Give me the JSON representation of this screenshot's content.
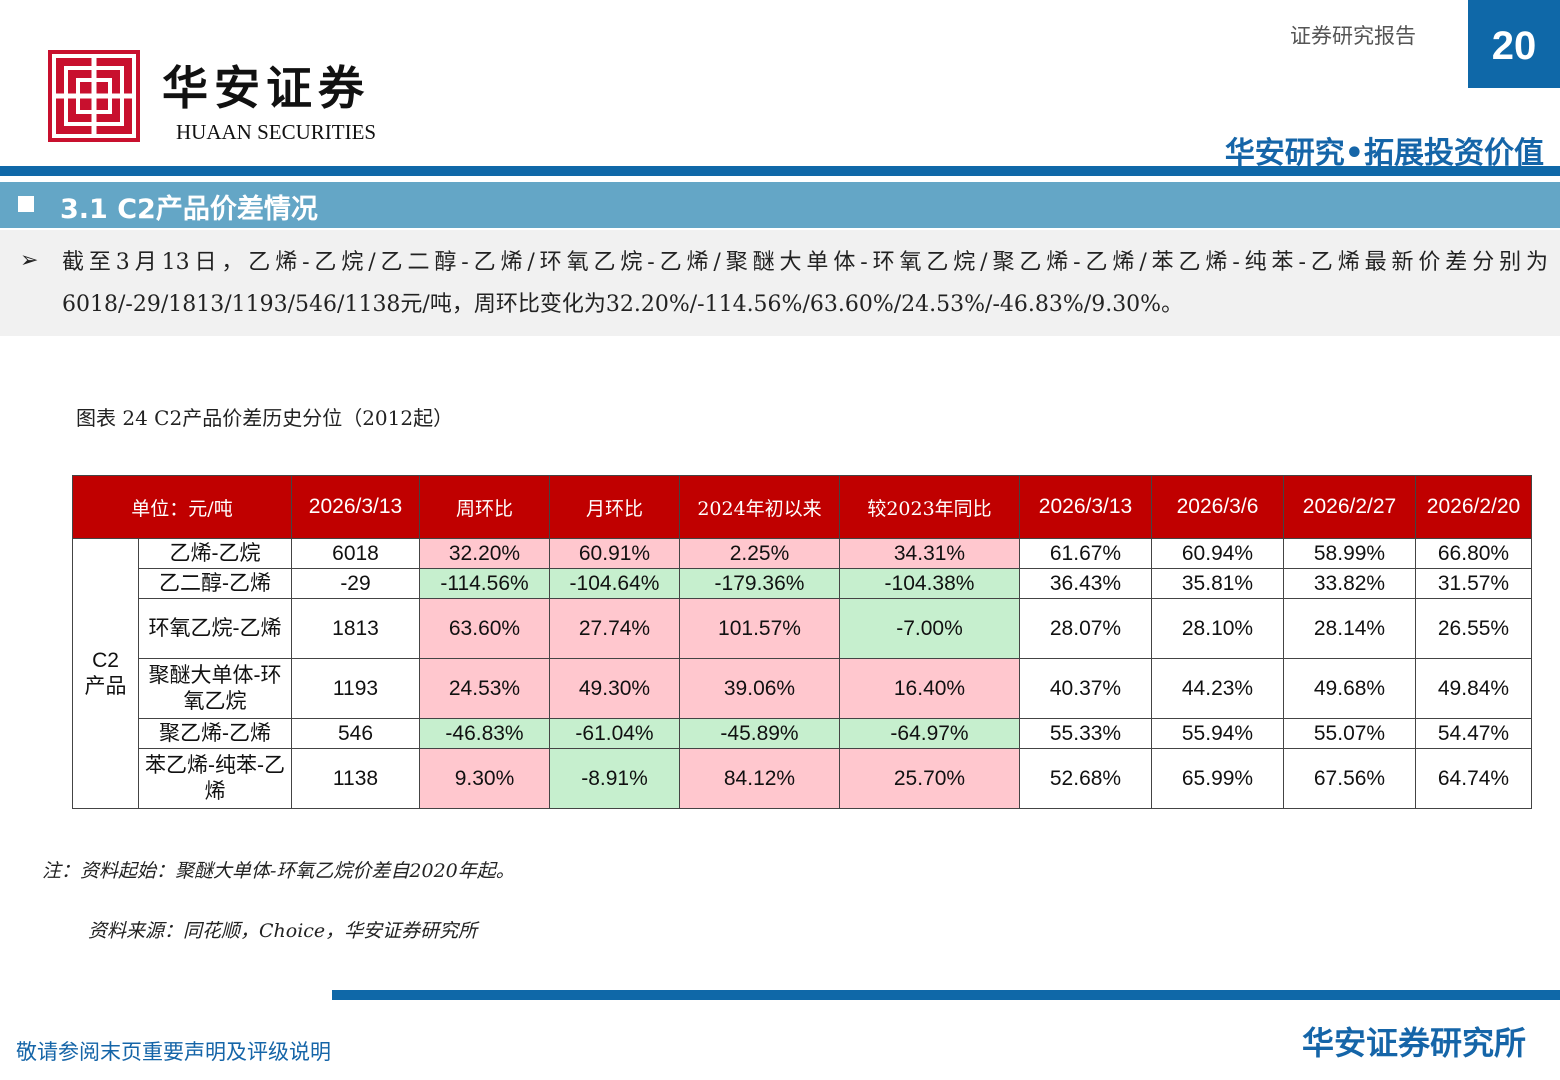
{
  "header": {
    "brand_cn": "华安证券",
    "brand_en": "HUAAN SECURITIES",
    "report_type": "证券研究报告",
    "page_number": "20",
    "slogan": "华安研究•拓展投资价值"
  },
  "section": {
    "title": "3.1 C2产品价差情况"
  },
  "summary": {
    "text": "截至3月13日，乙烯-乙烷/乙二醇-乙烯/环氧乙烷-乙烯/聚醚大单体-环氧乙烷/聚乙烯-乙烯/苯乙烯-纯苯-乙烯最新价差分别为6018/-29/1813/1193/546/1138元/吨，周环比变化为32.20%/-114.56%/63.60%/24.53%/-46.83%/9.30%。"
  },
  "figure": {
    "caption": "图表 24 C2产品价差历史分位（2012起）"
  },
  "table": {
    "headers": [
      "单位：元/吨",
      "2026/3/13",
      "周环比",
      "月环比",
      "2024年初以来",
      "较2023年同比",
      "2026/3/13",
      "2026/3/6",
      "2026/2/27",
      "2026/2/20"
    ],
    "group_label": "C2\n产品",
    "rows": [
      {
        "name": "乙烯-乙烷",
        "value": "6018",
        "changes": [
          "32.20%",
          "60.91%",
          "2.25%",
          "34.31%"
        ],
        "signs": [
          "pos",
          "pos",
          "pos",
          "pos"
        ],
        "percentiles": [
          "61.67%",
          "60.94%",
          "58.99%",
          "66.80%"
        ]
      },
      {
        "name": "乙二醇-乙烯",
        "value": "-29",
        "changes": [
          "-114.56%",
          "-104.64%",
          "-179.36%",
          "-104.38%"
        ],
        "signs": [
          "neg",
          "neg",
          "neg",
          "neg"
        ],
        "percentiles": [
          "36.43%",
          "35.81%",
          "33.82%",
          "31.57%"
        ]
      },
      {
        "name": "环氧乙烷-乙烯",
        "value": "1813",
        "changes": [
          "63.60%",
          "27.74%",
          "101.57%",
          "-7.00%"
        ],
        "signs": [
          "pos",
          "pos",
          "pos",
          "neg"
        ],
        "percentiles": [
          "28.07%",
          "28.10%",
          "28.14%",
          "26.55%"
        ]
      },
      {
        "name": "聚醚大单体-环氧乙烷",
        "value": "1193",
        "changes": [
          "24.53%",
          "49.30%",
          "39.06%",
          "16.40%"
        ],
        "signs": [
          "pos",
          "pos",
          "pos",
          "pos"
        ],
        "percentiles": [
          "40.37%",
          "44.23%",
          "49.68%",
          "49.84%"
        ]
      },
      {
        "name": "聚乙烯-乙烯",
        "value": "546",
        "changes": [
          "-46.83%",
          "-61.04%",
          "-45.89%",
          "-64.97%"
        ],
        "signs": [
          "neg",
          "neg",
          "neg",
          "neg"
        ],
        "percentiles": [
          "55.33%",
          "55.94%",
          "55.07%",
          "54.47%"
        ]
      },
      {
        "name": "苯乙烯-纯苯-乙烯",
        "value": "1138",
        "changes": [
          "9.30%",
          "-8.91%",
          "84.12%",
          "25.70%"
        ],
        "signs": [
          "pos",
          "neg",
          "pos",
          "pos"
        ],
        "percentiles": [
          "52.68%",
          "65.99%",
          "67.56%",
          "64.74%"
        ]
      }
    ]
  },
  "notes": {
    "note": "注：资料起始：聚醚大单体-环氧乙烷价差自2020年起。",
    "source": "资料来源：同花顺，Choice，华安证券研究所"
  },
  "footer": {
    "disclaimer": "敬请参阅末页重要声明及评级说明",
    "institute": "华安证券研究所"
  },
  "colors": {
    "brand_blue": "#0f68a8",
    "section_blue": "#64a6c6",
    "header_red": "#c00000",
    "positive_fill": "#ffc7ce",
    "negative_fill": "#c6efce"
  }
}
